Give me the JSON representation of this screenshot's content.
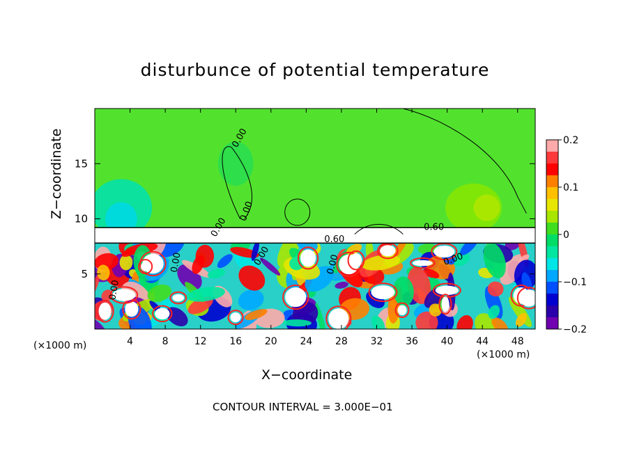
{
  "chart_data": {
    "type": "heatmap",
    "title": "disturbunce of potential temperature",
    "xlabel": "X−coordinate",
    "ylabel": "Z−coordinate",
    "x_unit_label_left": "(×1000 m)",
    "x_unit_label_right": "(×1000 m)",
    "footer": "CONTOUR INTERVAL = 3.000E−01",
    "xlim": [
      0,
      50
    ],
    "ylim": [
      0,
      20
    ],
    "x_ticks": [
      "4",
      "8",
      "12",
      "16",
      "20",
      "24",
      "28",
      "32",
      "36",
      "40",
      "44",
      "48"
    ],
    "y_ticks": [
      "5",
      "10",
      "15"
    ],
    "colorbar": {
      "min": -0.2,
      "max": 0.2,
      "tick_labels": [
        "0.2",
        "0.1",
        "0",
        "−0.1",
        "−0.2"
      ],
      "colors": [
        "#ffaaaa",
        "#ff3a3a",
        "#ff0000",
        "#ff8000",
        "#ffc000",
        "#e6e600",
        "#a8e600",
        "#40dd20",
        "#00dd66",
        "#00e6a0",
        "#00e6e6",
        "#00a8ff",
        "#0050ff",
        "#0000d0",
        "#2a00aa",
        "#7000b0"
      ]
    },
    "contour_labels": [
      "0.00",
      "0.60",
      "0.60",
      "0.00",
      "0.00",
      "0.00",
      "0.00",
      "0.00",
      "0.00",
      "0.00"
    ],
    "grid": false,
    "legend": "right"
  }
}
